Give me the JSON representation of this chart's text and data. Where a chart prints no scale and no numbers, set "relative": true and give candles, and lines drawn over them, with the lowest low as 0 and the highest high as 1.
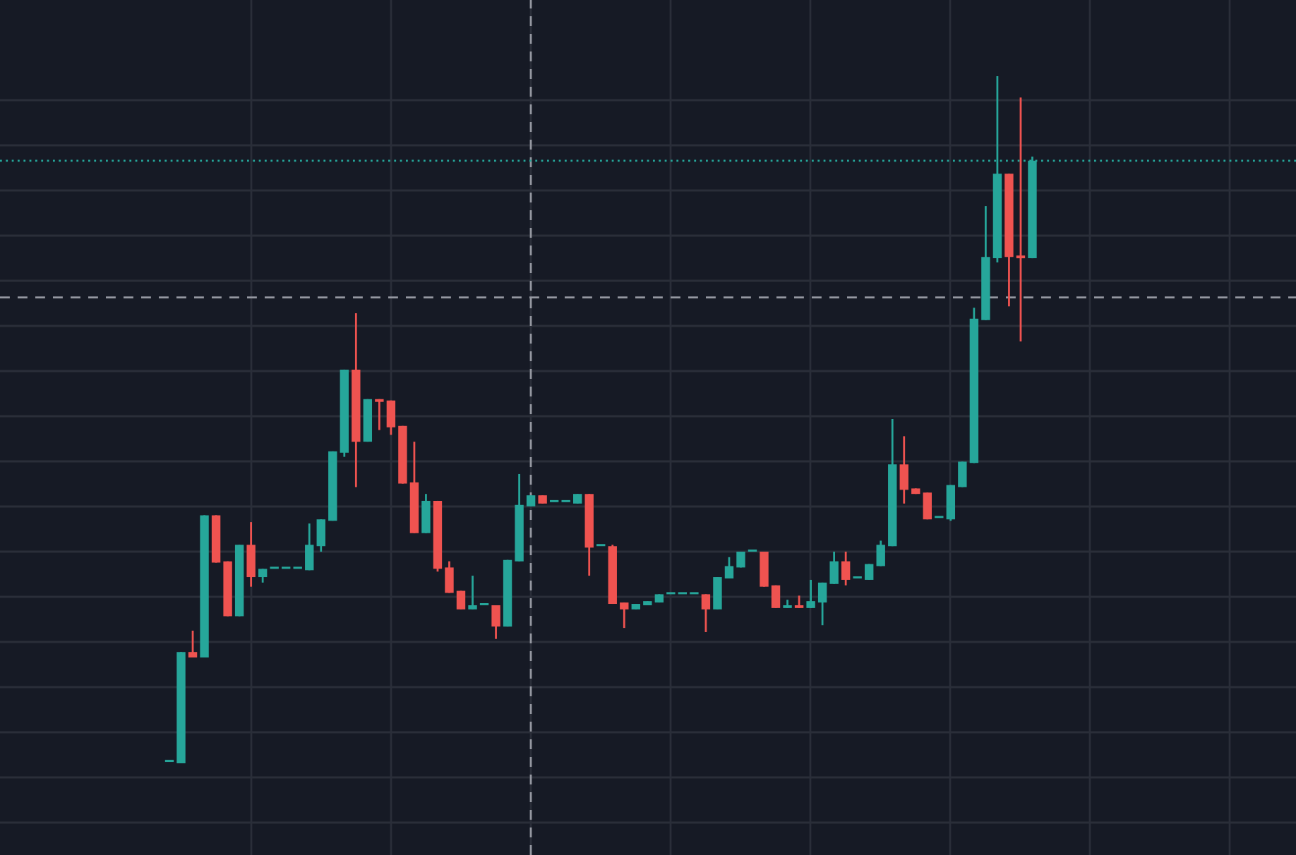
{
  "chart_data": {
    "type": "candlestick",
    "relative": true,
    "grid": true,
    "categories": [
      null,
      null,
      null,
      null,
      null,
      null,
      null,
      null,
      null,
      null,
      null,
      null,
      null,
      null,
      null,
      null,
      null,
      null,
      null,
      null,
      null,
      null,
      null,
      null,
      null,
      null,
      null,
      null,
      null,
      null,
      null,
      null,
      null,
      null,
      null,
      null,
      null,
      null,
      null,
      null,
      null,
      null,
      null,
      null,
      null,
      null,
      null,
      null,
      null,
      null,
      null,
      null,
      null,
      null,
      null,
      null,
      null,
      null,
      null,
      null,
      null,
      null,
      null,
      null,
      null,
      null,
      null,
      null,
      null,
      null,
      null,
      null,
      null,
      null,
      null
    ],
    "ohlc": [
      [
        0.002,
        0.002,
        0.002,
        0.002
      ],
      [
        0,
        0.162,
        0,
        0.162
      ],
      [
        0.162,
        0.193,
        0.154,
        0.154
      ],
      [
        0.154,
        0.361,
        0.154,
        0.361
      ],
      [
        0.361,
        0.361,
        0.292,
        0.292
      ],
      [
        0.294,
        0.294,
        0.214,
        0.214
      ],
      [
        0.214,
        0.318,
        0.214,
        0.318
      ],
      [
        0.318,
        0.351,
        0.257,
        0.271
      ],
      [
        0.271,
        0.283,
        0.263,
        0.283
      ],
      [
        0.283,
        0.283,
        0.283,
        0.283
      ],
      [
        0.283,
        0.283,
        0.283,
        0.283
      ],
      [
        0.283,
        0.283,
        0.283,
        0.283
      ],
      [
        0.281,
        0.349,
        0.281,
        0.318
      ],
      [
        0.316,
        0.355,
        0.308,
        0.355
      ],
      [
        0.353,
        0.454,
        0.353,
        0.454
      ],
      [
        0.452,
        0.573,
        0.446,
        0.573
      ],
      [
        0.573,
        0.655,
        0.402,
        0.468
      ],
      [
        0.468,
        0.53,
        0.468,
        0.53
      ],
      [
        0.53,
        0.53,
        0.485,
        0.526
      ],
      [
        0.528,
        0.528,
        0.478,
        0.489
      ],
      [
        0.491,
        0.491,
        0.407,
        0.407
      ],
      [
        0.409,
        0.468,
        0.335,
        0.335
      ],
      [
        0.335,
        0.392,
        0.335,
        0.382
      ],
      [
        0.382,
        0.382,
        0.279,
        0.283
      ],
      [
        0.285,
        0.294,
        0.248,
        0.248
      ],
      [
        0.251,
        0.251,
        0.224,
        0.224
      ],
      [
        0.224,
        0.273,
        0.224,
        0.23
      ],
      [
        0.23,
        0.23,
        0.23,
        0.23
      ],
      [
        0.23,
        0.23,
        0.181,
        0.199
      ],
      [
        0.199,
        0.296,
        0.199,
        0.296
      ],
      [
        0.294,
        0.421,
        0.294,
        0.376
      ],
      [
        0.374,
        0.39,
        0.374,
        0.39
      ],
      [
        0.39,
        0.39,
        0.378,
        0.378
      ],
      [
        0.38,
        0.38,
        0.38,
        0.38
      ],
      [
        0.38,
        0.38,
        0.38,
        0.38
      ],
      [
        0.378,
        0.392,
        0.378,
        0.392
      ],
      [
        0.392,
        0.392,
        0.273,
        0.314
      ],
      [
        0.316,
        0.316,
        0.316,
        0.316
      ],
      [
        0.316,
        0.318,
        0.232,
        0.232
      ],
      [
        0.234,
        0.234,
        0.197,
        0.224
      ],
      [
        0.224,
        0.232,
        0.224,
        0.232
      ],
      [
        0.23,
        0.236,
        0.23,
        0.236
      ],
      [
        0.234,
        0.246,
        0.234,
        0.246
      ],
      [
        0.246,
        0.246,
        0.246,
        0.246
      ],
      [
        0.246,
        0.246,
        0.246,
        0.246
      ],
      [
        0.246,
        0.246,
        0.246,
        0.246
      ],
      [
        0.246,
        0.246,
        0.191,
        0.224
      ],
      [
        0.224,
        0.271,
        0.224,
        0.271
      ],
      [
        0.269,
        0.3,
        0.269,
        0.287
      ],
      [
        0.285,
        0.308,
        0.285,
        0.308
      ],
      [
        0.308,
        0.308,
        0.308,
        0.308
      ],
      [
        0.308,
        0.308,
        0.257,
        0.257
      ],
      [
        0.259,
        0.259,
        0.226,
        0.226
      ],
      [
        0.226,
        0.238,
        0.226,
        0.23
      ],
      [
        0.23,
        0.244,
        0.226,
        0.226
      ],
      [
        0.226,
        0.267,
        0.226,
        0.236
      ],
      [
        0.234,
        0.263,
        0.201,
        0.263
      ],
      [
        0.261,
        0.308,
        0.261,
        0.294
      ],
      [
        0.294,
        0.308,
        0.259,
        0.267
      ],
      [
        0.269,
        0.269,
        0.269,
        0.269
      ],
      [
        0.267,
        0.29,
        0.267,
        0.29
      ],
      [
        0.287,
        0.324,
        0.287,
        0.318
      ],
      [
        0.316,
        0.501,
        0.316,
        0.435
      ],
      [
        0.435,
        0.476,
        0.378,
        0.398
      ],
      [
        0.4,
        0.4,
        0.392,
        0.392
      ],
      [
        0.394,
        0.394,
        0.355,
        0.355
      ],
      [
        0.357,
        0.357,
        0.357,
        0.357
      ],
      [
        0.355,
        0.405,
        0.353,
        0.405
      ],
      [
        0.402,
        0.439,
        0.402,
        0.439
      ],
      [
        0.437,
        0.663,
        0.437,
        0.647
      ],
      [
        0.645,
        0.811,
        0.645,
        0.737
      ],
      [
        0.735,
        1,
        0.729,
        0.858
      ],
      [
        0.858,
        0.858,
        0.665,
        0.737
      ],
      [
        0.739,
        0.969,
        0.614,
        0.735
      ],
      [
        0.735,
        0.883,
        0.735,
        0.877
      ]
    ],
    "ref_lines": [
      {
        "axis": "y",
        "value": 0.678,
        "color": "#9598a1",
        "line_style": "dashed"
      },
      {
        "axis": "y",
        "value": 0.877,
        "color": "#26a69a",
        "line_style": "dotted"
      }
    ]
  }
}
